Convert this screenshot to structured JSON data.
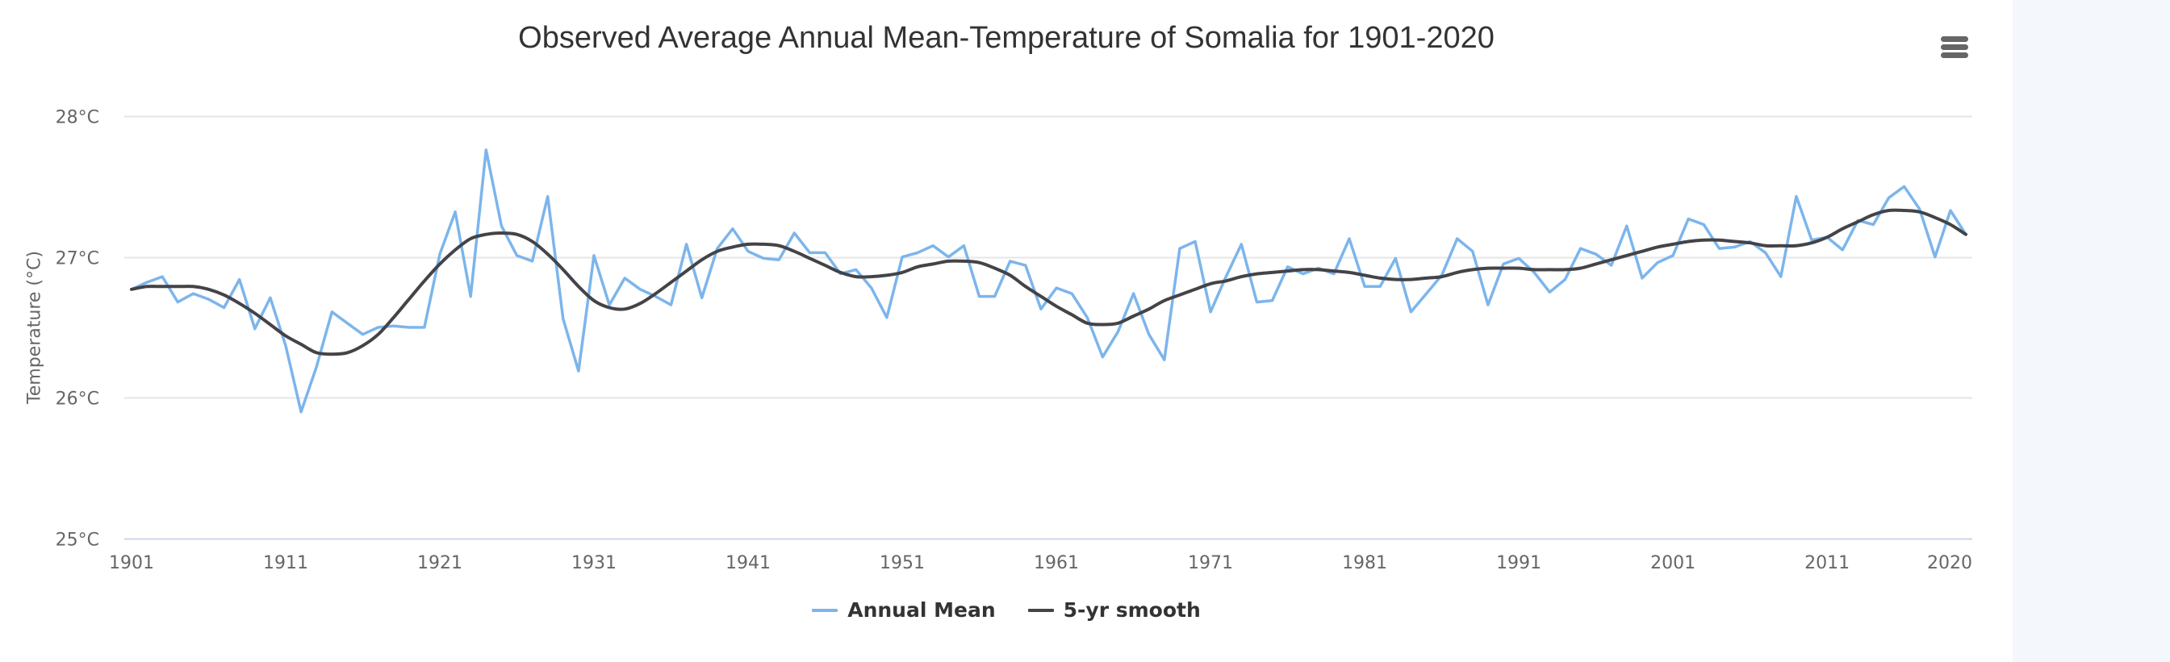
{
  "colors": {
    "annual": "#7cb5ec",
    "smooth": "#434348",
    "grid": "#e6e6e6",
    "axis_line": "#ccd6eb",
    "side_panel": "#f4f7fb"
  },
  "menu": {
    "icon": "hamburger-menu-icon"
  },
  "chart_data": {
    "type": "line",
    "title": "Observed Average Annual Mean-Temperature of Somalia for 1901-2020",
    "xlabel": "",
    "ylabel": "Temperature (°C)",
    "ylim": [
      25,
      28
    ],
    "xlim": [
      1901,
      2020
    ],
    "grid": true,
    "legend_position": "bottom-center",
    "y_ticks": [
      25,
      26,
      27,
      28
    ],
    "y_tick_labels": [
      "25°C",
      "26°C",
      "27°C",
      "28°C"
    ],
    "x_ticks": [
      1901,
      1911,
      1921,
      1931,
      1941,
      1951,
      1961,
      1971,
      1981,
      1991,
      2001,
      2011,
      2020
    ],
    "x_tick_labels": [
      "1901",
      "1911",
      "1921",
      "1931",
      "1941",
      "1951",
      "1961",
      "1971",
      "1981",
      "1991",
      "2001",
      "2011",
      "2020"
    ],
    "x_start": 1901,
    "series": [
      {
        "name": "Annual Mean",
        "color": "#7cb5ec",
        "values": [
          26.77,
          26.82,
          26.86,
          26.68,
          26.74,
          26.7,
          26.64,
          26.84,
          26.49,
          26.71,
          26.37,
          25.9,
          26.22,
          26.61,
          26.53,
          26.45,
          26.5,
          26.51,
          26.5,
          26.5,
          27.02,
          27.32,
          26.72,
          27.76,
          27.22,
          27.01,
          26.97,
          27.43,
          26.56,
          26.19,
          27.01,
          26.66,
          26.85,
          26.77,
          26.72,
          26.66,
          27.09,
          26.71,
          27.06,
          27.2,
          27.04,
          26.99,
          26.98,
          27.17,
          27.03,
          27.03,
          26.88,
          26.91,
          26.78,
          26.57,
          27.0,
          27.03,
          27.08,
          27.0,
          27.08,
          26.72,
          26.72,
          26.97,
          26.94,
          26.63,
          26.78,
          26.74,
          26.57,
          26.29,
          26.47,
          26.74,
          26.45,
          26.27,
          27.06,
          27.11,
          26.61,
          26.86,
          27.09,
          26.68,
          26.69,
          26.93,
          26.88,
          26.92,
          26.88,
          27.13,
          26.79,
          26.79,
          26.99,
          26.61,
          26.74,
          26.87,
          27.13,
          27.04,
          26.66,
          26.95,
          26.99,
          26.89,
          26.75,
          26.84,
          27.06,
          27.02,
          26.94,
          27.22,
          26.85,
          26.96,
          27.01,
          27.27,
          27.23,
          27.06,
          27.07,
          27.11,
          27.03,
          26.86,
          27.43,
          27.12,
          27.14,
          27.05,
          27.26,
          27.23,
          27.42,
          27.5,
          27.34,
          27.0,
          27.33,
          27.16
        ]
      },
      {
        "name": "5-yr smooth",
        "color": "#434348",
        "values": [
          26.77,
          26.79,
          26.79,
          26.79,
          26.79,
          26.77,
          26.73,
          26.67,
          26.6,
          26.52,
          26.44,
          26.38,
          26.32,
          26.31,
          26.32,
          26.37,
          26.45,
          26.57,
          26.7,
          26.83,
          26.95,
          27.05,
          27.13,
          27.16,
          27.17,
          27.16,
          27.11,
          27.02,
          26.91,
          26.79,
          26.69,
          26.64,
          26.63,
          26.67,
          26.74,
          26.82,
          26.9,
          26.98,
          27.04,
          27.07,
          27.09,
          27.09,
          27.08,
          27.04,
          26.99,
          26.94,
          26.89,
          26.86,
          26.86,
          26.87,
          26.89,
          26.93,
          26.95,
          26.97,
          26.97,
          26.96,
          26.92,
          26.87,
          26.79,
          26.72,
          26.65,
          26.59,
          26.53,
          26.52,
          26.53,
          26.58,
          26.63,
          26.69,
          26.73,
          26.77,
          26.81,
          26.83,
          26.86,
          26.88,
          26.89,
          26.9,
          26.91,
          26.91,
          26.9,
          26.89,
          26.87,
          26.85,
          26.84,
          26.84,
          26.85,
          26.86,
          26.89,
          26.91,
          26.92,
          26.92,
          26.92,
          26.91,
          26.91,
          26.91,
          26.92,
          26.95,
          26.98,
          27.01,
          27.04,
          27.07,
          27.09,
          27.11,
          27.12,
          27.12,
          27.11,
          27.1,
          27.08,
          27.08,
          27.08,
          27.1,
          27.14,
          27.2,
          27.25,
          27.3,
          27.33,
          27.33,
          27.32,
          27.28,
          27.23,
          27.16
        ]
      }
    ]
  }
}
